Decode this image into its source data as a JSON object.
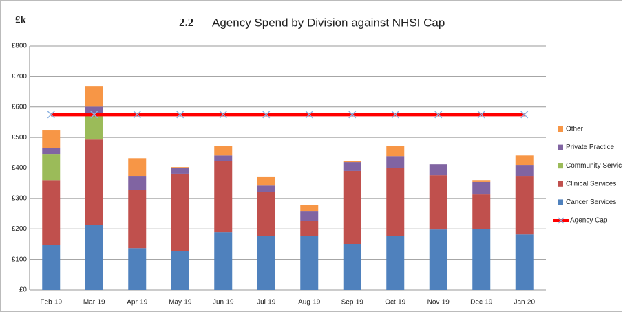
{
  "chart_data": {
    "type": "stacked_bar",
    "unit_label": "£k",
    "title_number": "2.2",
    "title": "Agency Spend by Division against NHSI Cap",
    "categories": [
      "Feb-19",
      "Mar-19",
      "Apr-19",
      "May-19",
      "Jun-19",
      "Jul-19",
      "Aug-19",
      "Sep-19",
      "Oct-19",
      "Nov-19",
      "Dec-19",
      "Jan-20"
    ],
    "series": [
      {
        "name": "Cancer Services",
        "color": "#4f81bd",
        "type": "bar",
        "values": [
          148,
          212,
          137,
          128,
          189,
          176,
          178,
          151,
          178,
          198,
          200,
          182
        ]
      },
      {
        "name": "Clinical Services",
        "color": "#c0504d",
        "type": "bar",
        "values": [
          212,
          281,
          190,
          253,
          234,
          144,
          49,
          239,
          223,
          178,
          113,
          192
        ]
      },
      {
        "name": "Community Servic",
        "color": "#9bbb59",
        "type": "bar",
        "values": [
          86,
          81,
          0,
          0,
          0,
          0,
          0,
          0,
          0,
          0,
          0,
          0
        ]
      },
      {
        "name": "Private Practice",
        "color": "#8064a2",
        "type": "bar",
        "values": [
          20,
          27,
          47,
          18,
          18,
          22,
          32,
          29,
          38,
          36,
          41,
          36
        ]
      },
      {
        "name": "Other",
        "color": "#f79646",
        "type": "bar",
        "values": [
          59,
          68,
          58,
          4,
          32,
          30,
          20,
          4,
          34,
          0,
          6,
          31
        ]
      },
      {
        "name": "Agency Cap",
        "color": "#ff0000",
        "marker_color": "#8db3e2",
        "type": "line",
        "values": [
          575,
          575,
          575,
          575,
          575,
          575,
          575,
          575,
          575,
          575,
          575,
          575
        ]
      }
    ],
    "ylim": [
      0,
      800
    ],
    "yticks": [
      {
        "value": 0,
        "label": "£0"
      },
      {
        "value": 100,
        "label": "£100"
      },
      {
        "value": 200,
        "label": "£200"
      },
      {
        "value": 300,
        "label": "£300"
      },
      {
        "value": 400,
        "label": "£400"
      },
      {
        "value": 500,
        "label": "£500"
      },
      {
        "value": 600,
        "label": "£600"
      },
      {
        "value": 700,
        "label": "£700"
      },
      {
        "value": 800,
        "label": "£800"
      }
    ],
    "grid": true,
    "legend": "right"
  }
}
